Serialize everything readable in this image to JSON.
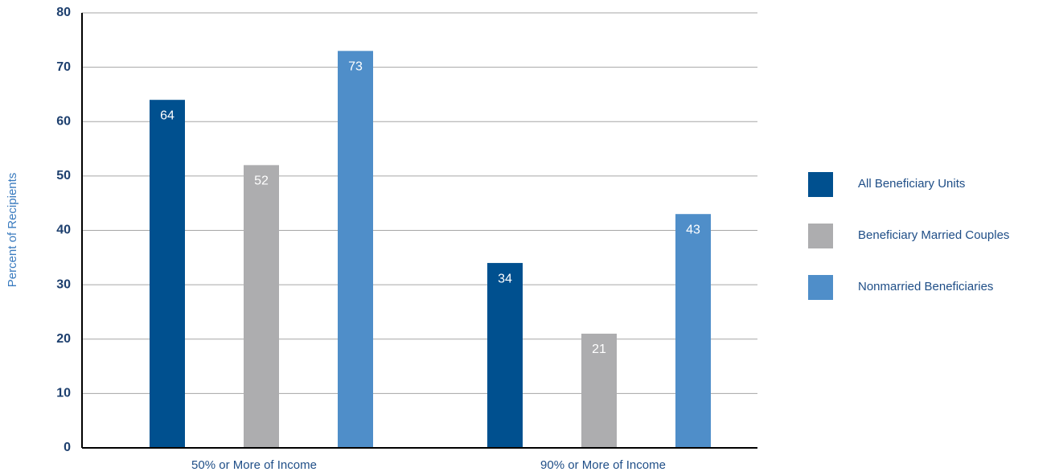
{
  "chart_data": {
    "type": "bar",
    "y_label": "Percent of Recipients",
    "categories": [
      "50% or More of Income",
      "90% or More of Income"
    ],
    "series": [
      {
        "name": "All Beneficiary Units",
        "color": "#00508f",
        "values": [
          64,
          34
        ]
      },
      {
        "name": "Beneficiary Married Couples",
        "color": "#adadaf",
        "values": [
          52,
          21
        ]
      },
      {
        "name": "Nonmarried Beneficiaries",
        "color": "#4f8ec9",
        "values": [
          73,
          43
        ]
      }
    ],
    "ylim": [
      0,
      80
    ],
    "yticks": [
      0,
      10,
      20,
      30,
      40,
      50,
      60,
      70,
      80
    ],
    "grid": true,
    "legend": "right"
  }
}
